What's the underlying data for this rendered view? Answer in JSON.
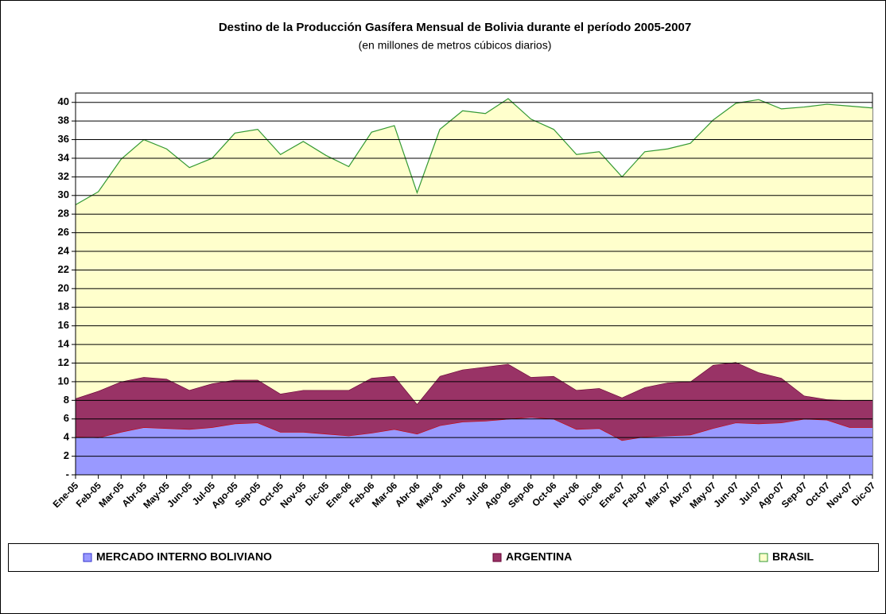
{
  "chart_data": {
    "type": "stacked_area",
    "title": "Destino de la Producción Gasífera Mensual de Bolivia durante el período 2005-2007",
    "subtitle": "(en millones de metros cúbicos diarios)",
    "categories": [
      "Ene-05",
      "Feb-05",
      "Mar-05",
      "Abr-05",
      "May-05",
      "Jun-05",
      "Jul-05",
      "Ago-05",
      "Sep-05",
      "Oct-05",
      "Nov-05",
      "Dic-05",
      "Ene-06",
      "Feb-06",
      "Mar-06",
      "Abr-06",
      "May-06",
      "Jun-06",
      "Jul-06",
      "Ago-06",
      "Sep-06",
      "Oct-06",
      "Nov-06",
      "Dic-06",
      "Ene-07",
      "Feb-07",
      "Mar-07",
      "Abr-07",
      "May-07",
      "Jun-07",
      "Jul-07",
      "Ago-07",
      "Sep-07",
      "Oct-07",
      "Nov-07",
      "Dic-07"
    ],
    "series": [
      {
        "name": "MERCADO INTERNO BOLIVIANO",
        "color": "#9999ff",
        "line_color": "#cc0000",
        "values": [
          4.1,
          4.0,
          4.6,
          5.1,
          5.0,
          4.9,
          5.1,
          5.5,
          5.6,
          4.6,
          4.6,
          4.4,
          4.2,
          4.5,
          4.9,
          4.4,
          5.3,
          5.7,
          5.8,
          6.0,
          6.2,
          6.0,
          4.9,
          5.0,
          3.7,
          4.1,
          4.2,
          4.3,
          5.0,
          5.6,
          5.5,
          5.6,
          6.0,
          5.9,
          5.1,
          5.1
        ]
      },
      {
        "name": "ARGENTINA",
        "color": "#993366",
        "line_color": "#660033",
        "values": [
          4.1,
          5.0,
          5.4,
          5.4,
          5.3,
          4.2,
          4.7,
          4.7,
          4.6,
          4.1,
          4.5,
          4.7,
          4.9,
          5.9,
          5.7,
          3.2,
          5.3,
          5.6,
          5.8,
          5.9,
          4.3,
          4.6,
          4.2,
          4.3,
          4.6,
          5.3,
          5.7,
          5.7,
          6.8,
          6.5,
          5.5,
          4.8,
          2.5,
          2.2,
          2.9,
          2.9
        ]
      },
      {
        "name": "BRASIL",
        "color": "#ffffcc",
        "line_color": "#339933",
        "values": [
          20.8,
          21.4,
          23.9,
          25.5,
          24.7,
          23.9,
          24.2,
          26.5,
          26.9,
          25.7,
          26.7,
          25.2,
          24.0,
          26.4,
          26.9,
          22.7,
          26.5,
          27.8,
          27.2,
          28.5,
          27.7,
          26.5,
          25.3,
          25.4,
          23.7,
          25.3,
          25.1,
          25.6,
          26.3,
          27.8,
          29.3,
          28.9,
          31.0,
          31.7,
          31.6,
          31.4
        ]
      }
    ],
    "ylim": [
      0,
      41
    ],
    "yticks": [
      {
        "value": 0,
        "label": "-"
      },
      2,
      4,
      6,
      8,
      10,
      12,
      14,
      16,
      18,
      20,
      22,
      24,
      26,
      28,
      30,
      32,
      34,
      36,
      38,
      40
    ],
    "grid": true,
    "legend": "bottom"
  }
}
